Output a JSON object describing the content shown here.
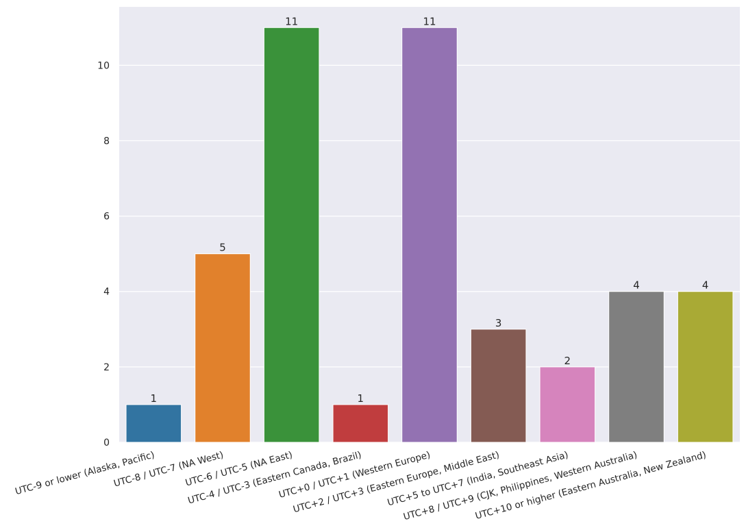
{
  "chart_data": {
    "type": "bar",
    "title": "",
    "xlabel": "",
    "ylabel": "",
    "categories": [
      "UTC-9 or lower (Alaska, Pacific)",
      "UTC-8 / UTC-7 (NA West)",
      "UTC-6 / UTC-5 (NA East)",
      "UTC-4 / UTC-3 (Eastern Canada, Brazil)",
      "UTC+0 / UTC+1 (Western Europe)",
      "UTC+2 / UTC+3 (Eastern Europe, Middle East)",
      "UTC+5 to UTC+7 (India, Southeast Asia)",
      "UTC+8 / UTC+9 (CJK, Philippines, Western Australia)",
      "UTC+10 or higher (Eastern Australia, New Zealand)"
    ],
    "values": [
      1,
      5,
      11,
      1,
      11,
      3,
      2,
      4,
      4
    ],
    "data_labels": [
      "1",
      "5",
      "11",
      "1",
      "11",
      "3",
      "2",
      "4",
      "4"
    ],
    "colors": [
      "#3274a1",
      "#e1812c",
      "#3a923a",
      "#c03d3e",
      "#9372b2",
      "#845b53",
      "#d684bd",
      "#7f7f7f",
      "#a9aa35"
    ],
    "ylim": [
      0,
      11.55
    ],
    "yticks": [
      0,
      2,
      4,
      6,
      8,
      10
    ],
    "ytick_labels": [
      "0",
      "2",
      "4",
      "6",
      "8",
      "10"
    ],
    "grid": true,
    "background": "#eaeaf2",
    "grid_color": "#ffffff"
  }
}
